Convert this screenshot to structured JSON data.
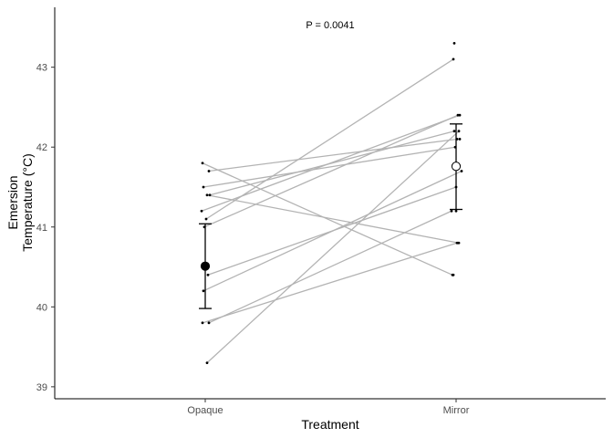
{
  "chart_data": {
    "type": "scatter",
    "title": "",
    "annotation": "P = 0.0041",
    "xlabel": "Treatment",
    "ylabel_lines": [
      "Emersion",
      "Temperature (°C)"
    ],
    "categories": [
      "Opaque",
      "Mirror"
    ],
    "yticks": [
      "39",
      "40",
      "41",
      "42",
      "43"
    ],
    "ylim": [
      38.85,
      43.75
    ],
    "grid": false,
    "legend": "none",
    "paired_points": [
      {
        "opaque": 41.8,
        "mirror": 40.4
      },
      {
        "opaque": 41.7,
        "mirror": 42.1
      },
      {
        "opaque": 41.5,
        "mirror": 42.0
      },
      {
        "opaque": 41.4,
        "mirror": 40.8
      },
      {
        "opaque": 41.4,
        "mirror": 42.2
      },
      {
        "opaque": 41.2,
        "mirror": 42.4
      },
      {
        "opaque": 41.1,
        "mirror": 43.1
      },
      {
        "opaque": 41.0,
        "mirror": 42.4
      },
      {
        "opaque": 40.4,
        "mirror": 41.5
      },
      {
        "opaque": 40.2,
        "mirror": 41.7
      },
      {
        "opaque": 39.8,
        "mirror": 41.2
      },
      {
        "opaque": 39.8,
        "mirror": 40.8
      },
      {
        "opaque": 39.3,
        "mirror": 42.2
      }
    ],
    "extra_points": [
      {
        "category": "Mirror",
        "value": 43.3
      },
      {
        "category": "Mirror",
        "value": 42.1
      },
      {
        "category": "Mirror",
        "value": 40.4
      },
      {
        "category": "Mirror",
        "value": 40.8
      },
      {
        "category": "Mirror",
        "value": 41.2
      }
    ],
    "summary": [
      {
        "category": "Opaque",
        "mean": 40.51,
        "lower": 39.98,
        "upper": 41.04,
        "marker": "filled"
      },
      {
        "category": "Mirror",
        "mean": 41.76,
        "lower": 41.22,
        "upper": 42.29,
        "marker": "open"
      }
    ],
    "colors": {
      "line": "#b3b3b3",
      "axis": "#000000",
      "point": "#000000",
      "open_fill": "#ffffff"
    }
  }
}
